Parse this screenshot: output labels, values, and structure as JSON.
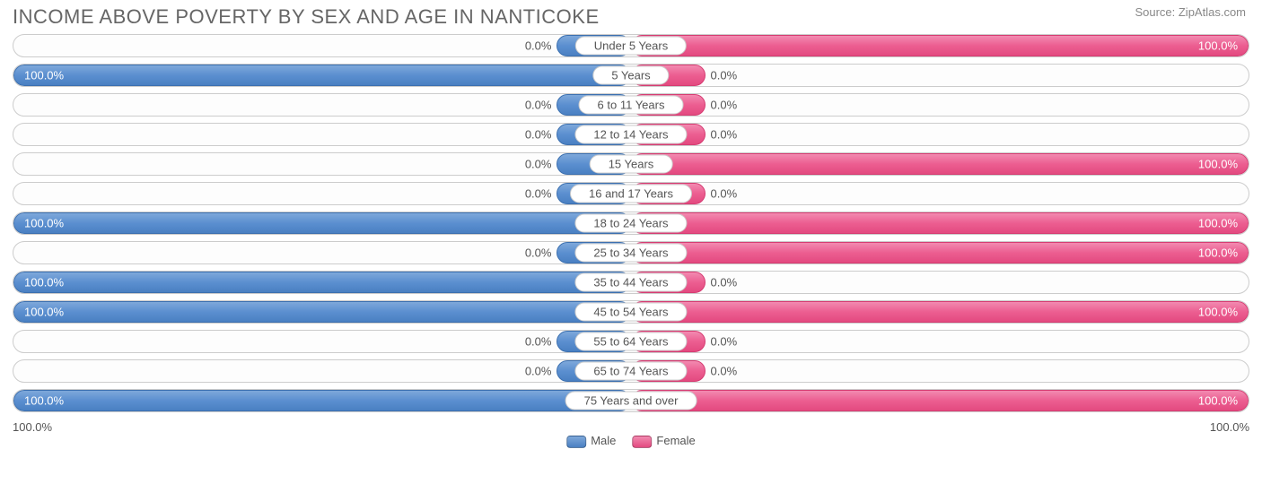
{
  "title": "INCOME ABOVE POVERTY BY SEX AND AGE IN NANTICOKE",
  "source": "Source: ZipAtlas.com",
  "chart": {
    "type": "diverging-bar",
    "male_color": "#4a80c2",
    "male_border": "#3c70b0",
    "female_color": "#e34a80",
    "female_border": "#d63c72",
    "background": "#ffffff",
    "row_border": "#cccccc",
    "text_color": "#555555",
    "title_color": "#666666",
    "title_fontsize": 22,
    "label_fontsize": 13,
    "min_bar_pct": 12,
    "rows": [
      {
        "age": "Under 5 Years",
        "male": 0.0,
        "female": 100.0
      },
      {
        "age": "5 Years",
        "male": 100.0,
        "female": 0.0
      },
      {
        "age": "6 to 11 Years",
        "male": 0.0,
        "female": 0.0
      },
      {
        "age": "12 to 14 Years",
        "male": 0.0,
        "female": 0.0
      },
      {
        "age": "15 Years",
        "male": 0.0,
        "female": 100.0
      },
      {
        "age": "16 and 17 Years",
        "male": 0.0,
        "female": 0.0
      },
      {
        "age": "18 to 24 Years",
        "male": 100.0,
        "female": 100.0
      },
      {
        "age": "25 to 34 Years",
        "male": 0.0,
        "female": 100.0
      },
      {
        "age": "35 to 44 Years",
        "male": 100.0,
        "female": 0.0
      },
      {
        "age": "45 to 54 Years",
        "male": 100.0,
        "female": 100.0
      },
      {
        "age": "55 to 64 Years",
        "male": 0.0,
        "female": 0.0
      },
      {
        "age": "65 to 74 Years",
        "male": 0.0,
        "female": 0.0
      },
      {
        "age": "75 Years and over",
        "male": 100.0,
        "female": 100.0
      }
    ],
    "axis_left": "100.0%",
    "axis_right": "100.0%",
    "legend_male": "Male",
    "legend_female": "Female"
  }
}
